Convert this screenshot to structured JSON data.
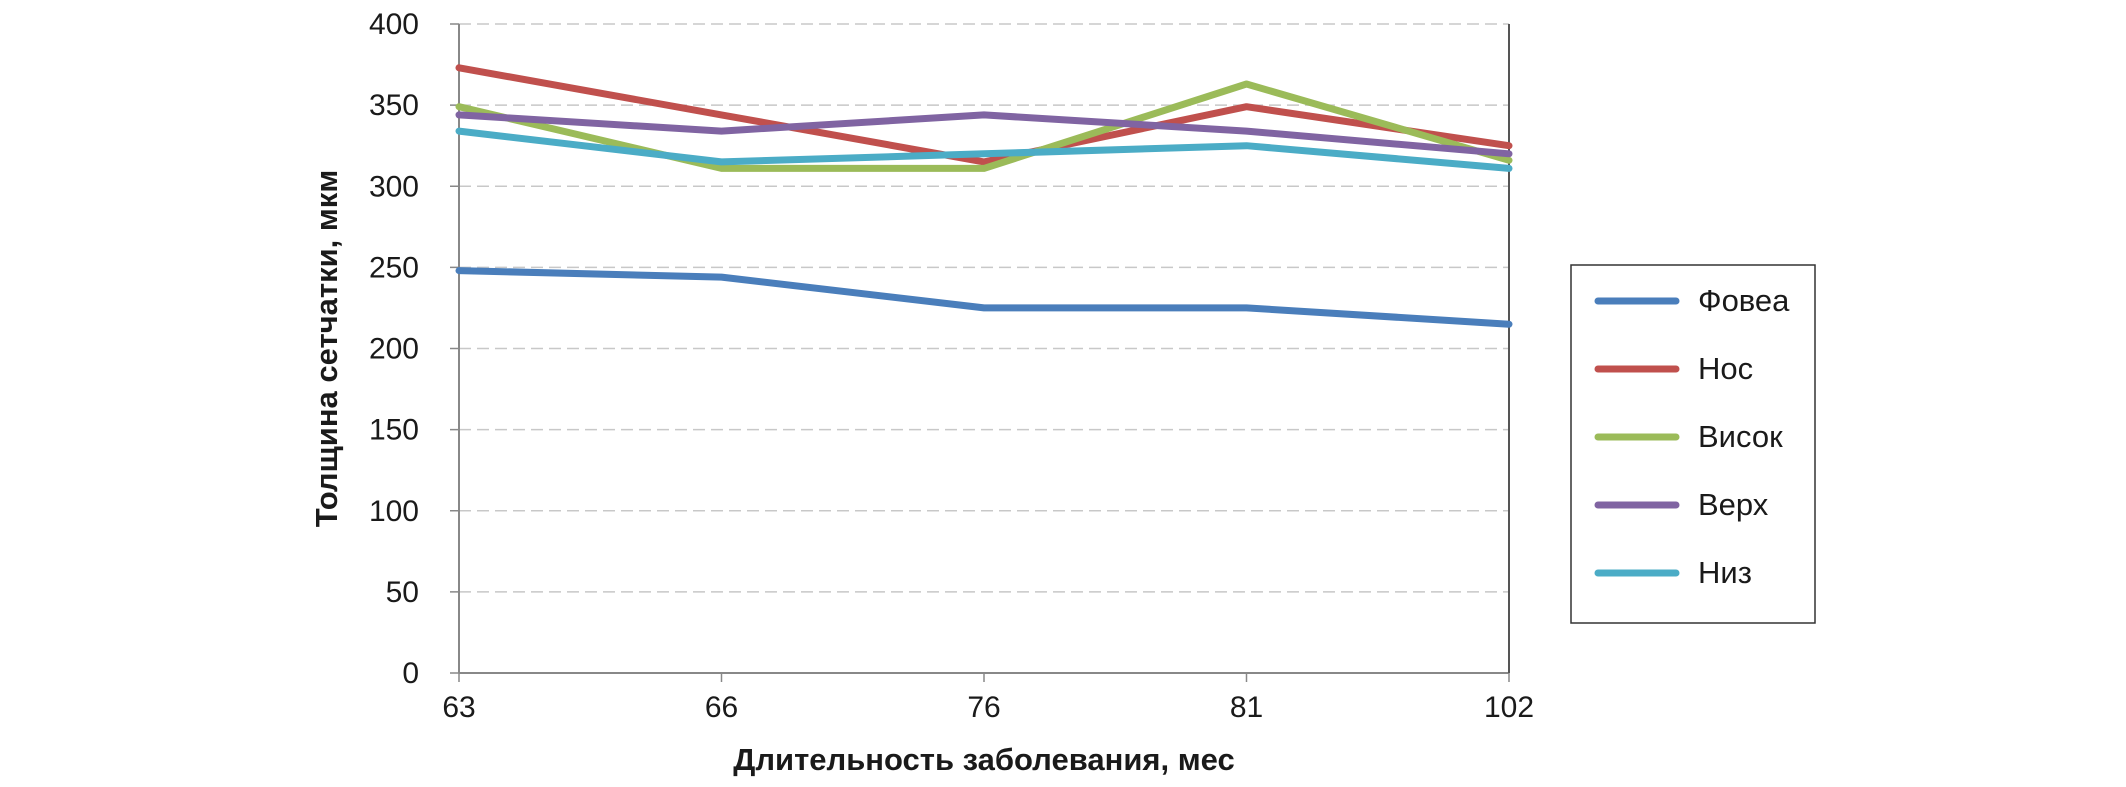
{
  "chart_data": {
    "type": "line",
    "categories": [
      "63",
      "66",
      "76",
      "81",
      "102"
    ],
    "xlabel": "Длительность заболевания, мес",
    "ylabel": "Толщина сетчатки, мкм",
    "ylim": [
      0,
      400
    ],
    "yticks": [
      0,
      50,
      100,
      150,
      200,
      250,
      300,
      350,
      400
    ],
    "grid": "horizontal dashed",
    "legend": "right",
    "series": [
      {
        "name": "Фовеа",
        "color": "#4a7ebb",
        "values": [
          248,
          244,
          225,
          225,
          215
        ]
      },
      {
        "name": "Нос",
        "color": "#c0504d",
        "values": [
          373,
          344,
          315,
          349,
          325
        ]
      },
      {
        "name": "Висок",
        "color": "#9bbb59",
        "values": [
          349,
          311,
          311,
          363,
          316
        ]
      },
      {
        "name": "Верх",
        "color": "#8064a2",
        "values": [
          344,
          334,
          344,
          334,
          320
        ]
      },
      {
        "name": "Низ",
        "color": "#4bacc6",
        "values": [
          334,
          315,
          320,
          325,
          311
        ]
      }
    ]
  }
}
